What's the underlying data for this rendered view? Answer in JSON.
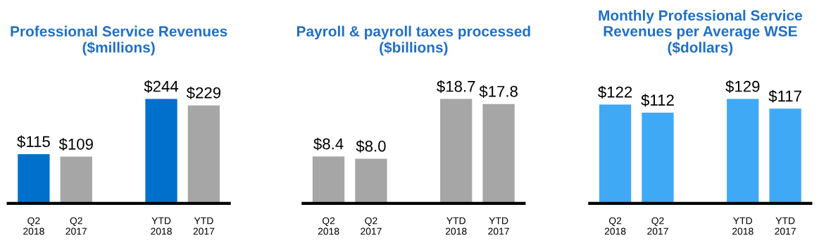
{
  "chart_data": [
    {
      "type": "bar",
      "title": "Professional Service Revenues\n($millions)",
      "categories": [
        "Q2\n2018",
        "Q2\n2017",
        null,
        "YTD\n2018",
        "YTD\n2017"
      ],
      "values": [
        115,
        109,
        null,
        244,
        229
      ],
      "colors": [
        "#0070cd",
        "#a6a6a6",
        "#a6a6a6",
        "#0070cd",
        "#a6a6a6"
      ],
      "value_labels": [
        "$115",
        "$109",
        null,
        "$244",
        "$229"
      ]
    },
    {
      "type": "bar",
      "title": "Payroll & payroll taxes processed\n($billions)",
      "categories": [
        "Q2\n2018",
        "Q2\n2017",
        null,
        "YTD\n2018",
        "YTD\n2017"
      ],
      "values": [
        8.4,
        8.0,
        null,
        18.7,
        17.8
      ],
      "colors": [
        "#a6a6a6",
        "#a6a6a6",
        "#a6a6a6",
        "#a6a6a6",
        "#a6a6a6"
      ],
      "value_labels": [
        "$8.4",
        "$8.0",
        null,
        "$18.7",
        "$17.8"
      ]
    },
    {
      "type": "bar",
      "title": "Monthly Professional Service\nRevenues per Average WSE\n($dollars)",
      "categories": [
        "Q2\n2018",
        "Q2\n2017",
        null,
        "YTD\n2018",
        "YTD\n2017"
      ],
      "values": [
        122,
        112,
        null,
        129,
        117
      ],
      "colors": [
        "#3fa9f5",
        "#3fa9f5",
        "#3fa9f5",
        "#3fa9f5",
        "#3fa9f5"
      ],
      "value_labels": [
        "$122",
        "$112",
        null,
        "$129",
        "$117"
      ]
    }
  ]
}
